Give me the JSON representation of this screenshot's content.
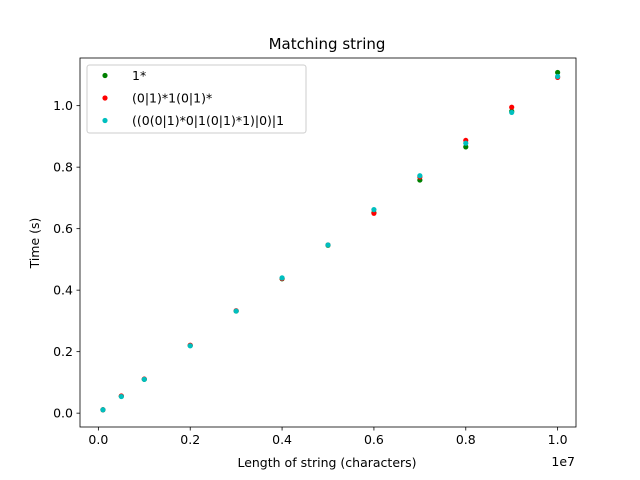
{
  "chart_data": {
    "type": "scatter",
    "title": "Matching string",
    "xlabel": "Length of string (characters)",
    "ylabel": "Time (s)",
    "x_offset_label": "1e7",
    "x_scale": 10000000,
    "xlim": [
      -400000,
      10400000
    ],
    "ylim": [
      -0.045,
      1.155
    ],
    "xticks": [
      0,
      2000000,
      4000000,
      6000000,
      8000000,
      10000000
    ],
    "xtick_labels": [
      "0.0",
      "0.2",
      "0.4",
      "0.6",
      "0.8",
      "1.0"
    ],
    "yticks": [
      0.0,
      0.2,
      0.4,
      0.6,
      0.8,
      1.0
    ],
    "ytick_labels": [
      "0.0",
      "0.2",
      "0.4",
      "0.6",
      "0.8",
      "1.0"
    ],
    "grid": false,
    "legend_position": "upper-left",
    "x": [
      100000,
      500000,
      1000000,
      2000000,
      3000000,
      4000000,
      5000000,
      6000000,
      7000000,
      8000000,
      9000000,
      10000000
    ],
    "series": [
      {
        "name": "1*",
        "color": "#008000",
        "values": [
          0.011,
          0.055,
          0.11,
          0.22,
          0.332,
          0.437,
          0.546,
          0.652,
          0.758,
          0.866,
          0.982,
          1.108
        ]
      },
      {
        "name": "(0|1)*1(0|1)*",
        "color": "#ff0000",
        "values": [
          0.011,
          0.056,
          0.111,
          0.221,
          0.333,
          0.438,
          0.547,
          0.65,
          0.768,
          0.887,
          0.995,
          1.092
        ]
      },
      {
        "name": "((0(0|1)*0|1(0|1)*1)|0)|1",
        "color": "#00bfbf",
        "values": [
          0.011,
          0.054,
          0.11,
          0.219,
          0.332,
          0.44,
          0.547,
          0.662,
          0.772,
          0.878,
          0.978,
          1.095
        ]
      }
    ]
  }
}
